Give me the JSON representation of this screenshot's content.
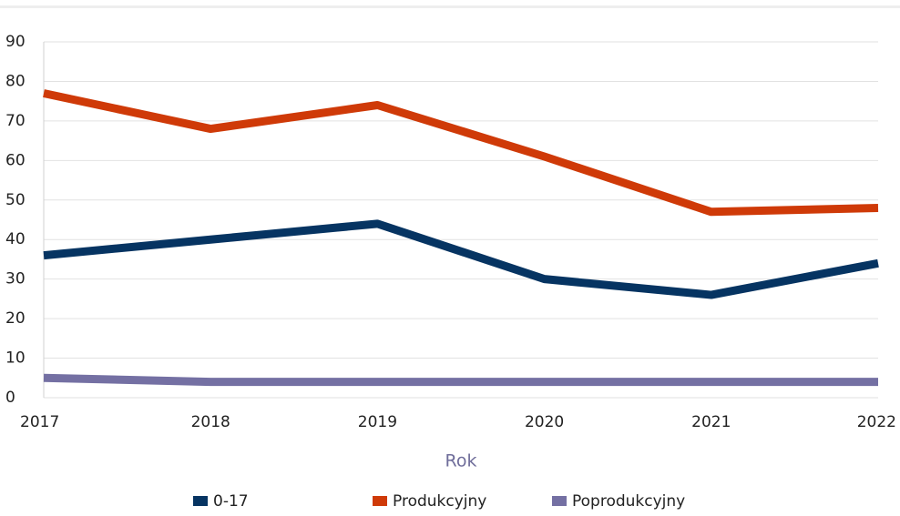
{
  "chart_data": {
    "type": "line",
    "x": [
      2017,
      2018,
      2019,
      2020,
      2021,
      2022
    ],
    "xlim": [
      2017,
      2022
    ],
    "xticks": [
      2017,
      2018,
      2019,
      2020,
      2021,
      2022
    ],
    "ylim": [
      0,
      90
    ],
    "yticks": [
      0,
      10,
      20,
      30,
      40,
      50,
      60,
      70,
      80,
      90
    ],
    "xlabel": "Rok",
    "grid": true,
    "legend": "bottom",
    "series": [
      {
        "name": "0-17",
        "color": "#063462",
        "values": [
          36,
          40,
          44,
          30,
          26,
          34
        ]
      },
      {
        "name": "Produkcyjny",
        "color": "#cf3a08",
        "values": [
          77,
          68,
          74,
          61,
          47,
          48
        ]
      },
      {
        "name": "Poprodukcyjny",
        "color": "#7470a3",
        "values": [
          5,
          4,
          4,
          4,
          4,
          4
        ]
      }
    ]
  }
}
